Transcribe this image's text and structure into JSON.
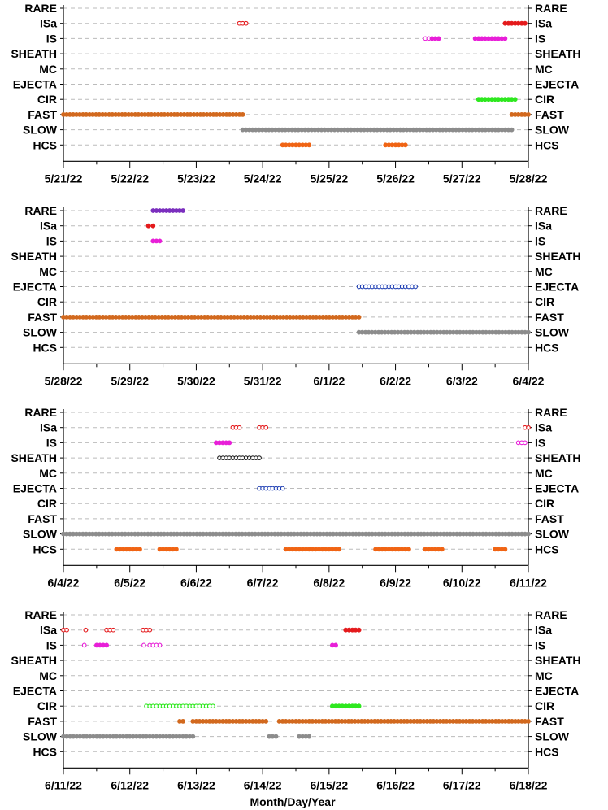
{
  "figure": {
    "xlabel": "Month/Day/Year"
  },
  "categories": [
    "RARE",
    "ISa",
    "IS",
    "SHEATH",
    "MC",
    "EJECTA",
    "CIR",
    "FAST",
    "SLOW",
    "HCS"
  ],
  "colors": {
    "RARE": "#7b2fbe",
    "ISa": "#e41a1c",
    "IS": "#e81fd8",
    "SHEATH": "#222222",
    "EJECTA": "#1f3fb4",
    "CIR": "#2ee81f",
    "FAST": "#d2691e",
    "SLOW": "#8c8c8c",
    "HCS": "#f06414",
    "gridline": "#bbbbbb"
  },
  "chart_data": [
    {
      "type": "scatter",
      "panel": 1,
      "x_start_day": "5/21/22",
      "xlim_days": [
        0,
        7
      ],
      "tick_labels": [
        "5/21/22",
        "5/22/22",
        "5/23/22",
        "5/24/22",
        "5/25/22",
        "5/26/22",
        "5/27/22",
        "5/28/22"
      ],
      "grid": true,
      "series": [
        {
          "name": "ISa",
          "segments": [
            [
              2.65,
              2.75,
              "hollow"
            ],
            [
              6.65,
              6.95,
              "filled"
            ]
          ]
        },
        {
          "name": "IS",
          "segments": [
            [
              5.45,
              5.55,
              "hollow"
            ],
            [
              5.55,
              5.65,
              "filled"
            ],
            [
              6.2,
              6.25,
              "filled"
            ],
            [
              6.3,
              6.65,
              "filled"
            ]
          ]
        },
        {
          "name": "CIR",
          "segments": [
            [
              6.25,
              6.8,
              "filled"
            ]
          ]
        },
        {
          "name": "FAST",
          "segments": [
            [
              0.0,
              2.7,
              "filled"
            ],
            [
              6.75,
              7.0,
              "filled"
            ]
          ]
        },
        {
          "name": "SLOW",
          "segments": [
            [
              2.7,
              6.75,
              "filled"
            ]
          ]
        },
        {
          "name": "HCS",
          "segments": [
            [
              3.3,
              3.7,
              "filled"
            ],
            [
              4.85,
              5.15,
              "filled"
            ]
          ]
        }
      ]
    },
    {
      "type": "scatter",
      "panel": 2,
      "x_start_day": "5/28/22",
      "xlim_days": [
        0,
        7
      ],
      "tick_labels": [
        "5/28/22",
        "5/29/22",
        "5/30/22",
        "5/31/22",
        "6/1/22",
        "6/2/22",
        "6/3/22",
        "6/4/22"
      ],
      "grid": true,
      "series": [
        {
          "name": "RARE",
          "segments": [
            [
              1.35,
              1.8,
              "filled"
            ]
          ]
        },
        {
          "name": "ISa",
          "segments": [
            [
              1.28,
              1.35,
              "filled"
            ]
          ]
        },
        {
          "name": "IS",
          "segments": [
            [
              1.35,
              1.45,
              "filled"
            ]
          ]
        },
        {
          "name": "EJECTA",
          "segments": [
            [
              4.45,
              5.3,
              "hollow"
            ]
          ]
        },
        {
          "name": "FAST",
          "segments": [
            [
              0.0,
              4.45,
              "filled"
            ]
          ]
        },
        {
          "name": "SLOW",
          "segments": [
            [
              4.45,
              7.0,
              "filled"
            ]
          ]
        }
      ]
    },
    {
      "type": "scatter",
      "panel": 3,
      "x_start_day": "6/4/22",
      "xlim_days": [
        0,
        7
      ],
      "tick_labels": [
        "6/4/22",
        "6/5/22",
        "6/6/22",
        "6/7/22",
        "6/8/22",
        "6/9/22",
        "6/10/22",
        "6/11/22"
      ],
      "grid": true,
      "series": [
        {
          "name": "ISa",
          "segments": [
            [
              2.55,
              2.65,
              "hollow"
            ],
            [
              2.95,
              3.05,
              "hollow"
            ],
            [
              6.95,
              7.0,
              "hollow"
            ]
          ]
        },
        {
          "name": "IS",
          "segments": [
            [
              2.3,
              2.5,
              "filled"
            ],
            [
              6.85,
              6.95,
              "hollow"
            ]
          ]
        },
        {
          "name": "SHEATH",
          "segments": [
            [
              2.35,
              2.95,
              "hollow"
            ]
          ]
        },
        {
          "name": "EJECTA",
          "segments": [
            [
              2.95,
              3.3,
              "hollow"
            ]
          ]
        },
        {
          "name": "SLOW",
          "segments": [
            [
              0.0,
              7.0,
              "filled"
            ]
          ]
        },
        {
          "name": "HCS",
          "segments": [
            [
              0.8,
              1.15,
              "filled"
            ],
            [
              1.45,
              1.7,
              "filled"
            ],
            [
              3.35,
              4.15,
              "filled"
            ],
            [
              4.7,
              5.2,
              "filled"
            ],
            [
              5.45,
              5.7,
              "filled"
            ],
            [
              6.5,
              6.65,
              "filled"
            ]
          ]
        }
      ]
    },
    {
      "type": "scatter",
      "panel": 4,
      "x_start_day": "6/11/22",
      "xlim_days": [
        0,
        7
      ],
      "tick_labels": [
        "6/11/22",
        "6/12/22",
        "6/13/22",
        "6/14/22",
        "6/15/22",
        "6/16/22",
        "6/17/22",
        "6/18/22"
      ],
      "grid": true,
      "series": [
        {
          "name": "ISa",
          "segments": [
            [
              0.0,
              0.05,
              "hollow"
            ],
            [
              0.32,
              0.35,
              "hollow"
            ],
            [
              0.65,
              0.75,
              "hollow"
            ],
            [
              1.2,
              1.3,
              "hollow"
            ],
            [
              4.25,
              4.45,
              "filled"
            ]
          ]
        },
        {
          "name": "IS",
          "segments": [
            [
              0.3,
              0.33,
              "hollow"
            ],
            [
              0.5,
              0.65,
              "filled"
            ],
            [
              1.2,
              1.22,
              "hollow"
            ],
            [
              1.3,
              1.45,
              "hollow"
            ],
            [
              4.05,
              4.1,
              "filled"
            ]
          ]
        },
        {
          "name": "CIR",
          "segments": [
            [
              1.25,
              2.25,
              "hollow"
            ],
            [
              4.05,
              4.45,
              "filled"
            ]
          ]
        },
        {
          "name": "FAST",
          "segments": [
            [
              1.75,
              1.8,
              "filled"
            ],
            [
              1.95,
              3.05,
              "filled"
            ],
            [
              3.25,
              3.55,
              "filled"
            ],
            [
              3.6,
              3.7,
              "filled"
            ],
            [
              3.75,
              7.0,
              "filled"
            ]
          ]
        },
        {
          "name": "SLOW",
          "segments": [
            [
              0.0,
              1.7,
              "filled"
            ],
            [
              1.75,
              1.95,
              "filled"
            ],
            [
              3.1,
              3.2,
              "filled"
            ],
            [
              3.55,
              3.6,
              "filled"
            ],
            [
              3.65,
              3.7,
              "filled"
            ]
          ]
        }
      ]
    }
  ]
}
